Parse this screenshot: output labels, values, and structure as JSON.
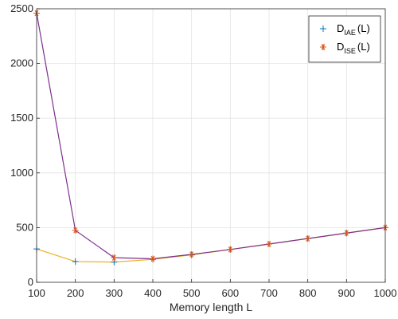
{
  "chart_data": {
    "type": "line",
    "title": "",
    "xlabel": "Memory length L",
    "ylabel": "",
    "xlim": [
      100,
      1000
    ],
    "ylim": [
      0,
      2500
    ],
    "xticks": [
      100,
      200,
      300,
      400,
      500,
      600,
      700,
      800,
      900,
      1000
    ],
    "yticks": [
      0,
      500,
      1000,
      1500,
      2000,
      2500
    ],
    "grid": true,
    "legend_position": "top-right",
    "x": [
      100,
      200,
      300,
      400,
      500,
      600,
      700,
      800,
      900,
      1000
    ],
    "series": [
      {
        "name_main": "D",
        "name_sub": "IAE",
        "name_suffix": "(L)",
        "marker": "plus",
        "marker_color": "#0072BD",
        "line_color": "#EDB120",
        "values": [
          305,
          190,
          185,
          210,
          250,
          300,
          350,
          400,
          450,
          500
        ]
      },
      {
        "name_main": "D",
        "name_sub": "ISE",
        "name_suffix": "(L)",
        "marker": "asterisk",
        "marker_color": "#D95319",
        "line_color": "#7E2F8E",
        "values": [
          2460,
          475,
          225,
          215,
          255,
          300,
          350,
          400,
          450,
          500
        ]
      }
    ]
  }
}
